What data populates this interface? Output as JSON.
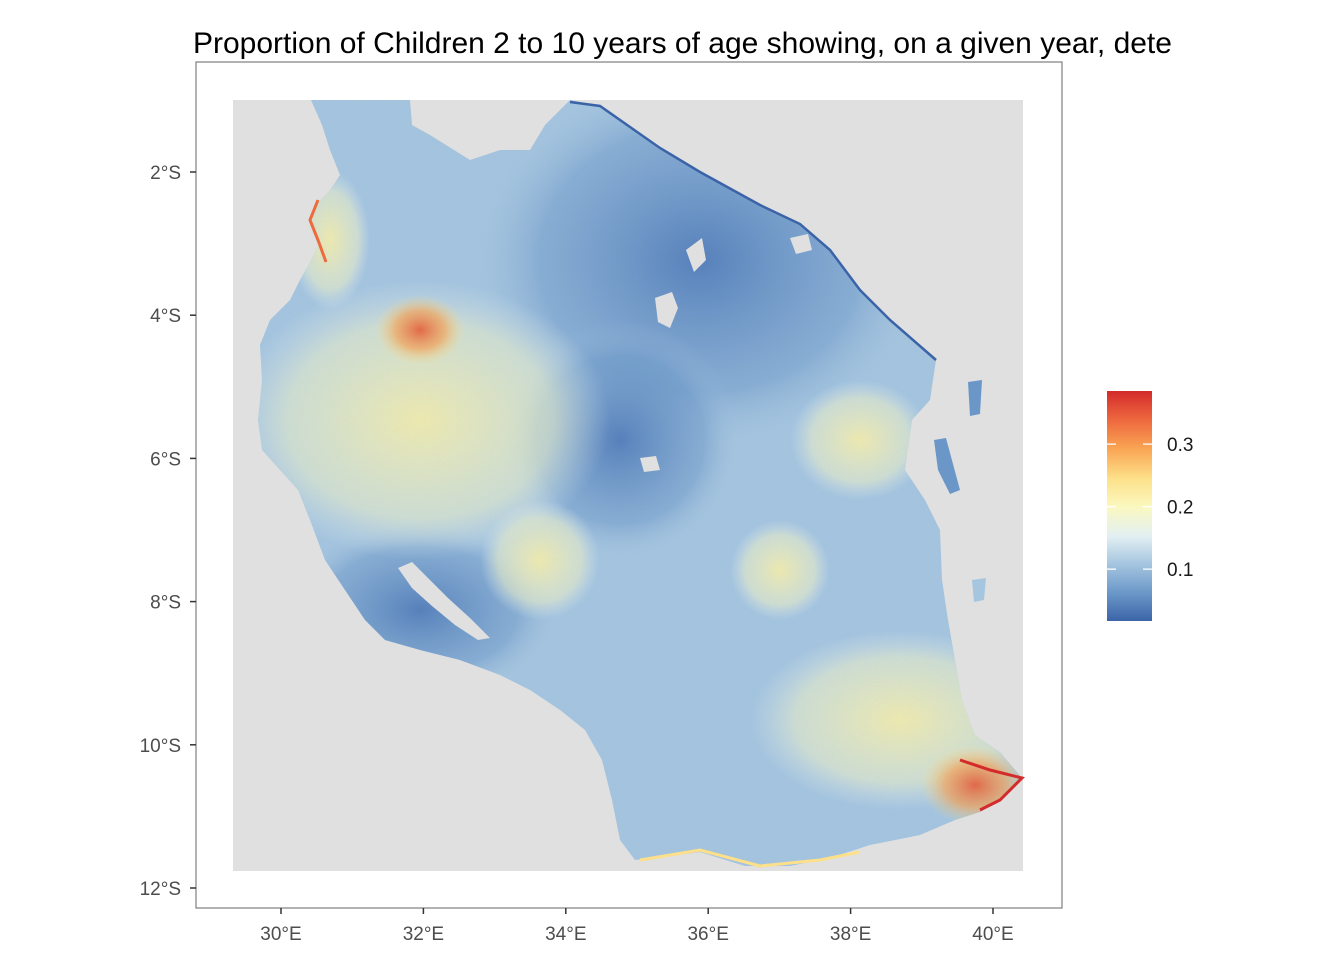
{
  "title": "Proportion of Children 2 to 10 years of age showing, on a given year, dete",
  "x_axis": {
    "ticks": [
      "30°E",
      "32°E",
      "34°E",
      "36°E",
      "38°E",
      "40°E"
    ],
    "values": [
      30,
      32,
      34,
      36,
      38,
      40
    ],
    "range": [
      28.9,
      41.2
    ]
  },
  "y_axis": {
    "ticks": [
      "2°S",
      "4°S",
      "6°S",
      "8°S",
      "10°S",
      "12°S"
    ],
    "values": [
      -2,
      -4,
      -6,
      -8,
      -10,
      -12
    ],
    "range": [
      -12.25,
      -0.75
    ]
  },
  "legend": {
    "labels": [
      "0.1",
      "0.2",
      "0.3"
    ],
    "values": [
      0.1,
      0.2,
      0.3
    ],
    "min": 0.017,
    "max": 0.385,
    "colors": [
      "#3b64a8",
      "#6a97c8",
      "#a6c6e0",
      "#e3f0f2",
      "#fbf8bf",
      "#fde089",
      "#f9a453",
      "#ee6a3f",
      "#d32b2b"
    ]
  },
  "colors": {
    "panel_background": "#e0e0e0",
    "plot_background": "#ffffff",
    "panel_border": "#7f7f7f"
  }
}
